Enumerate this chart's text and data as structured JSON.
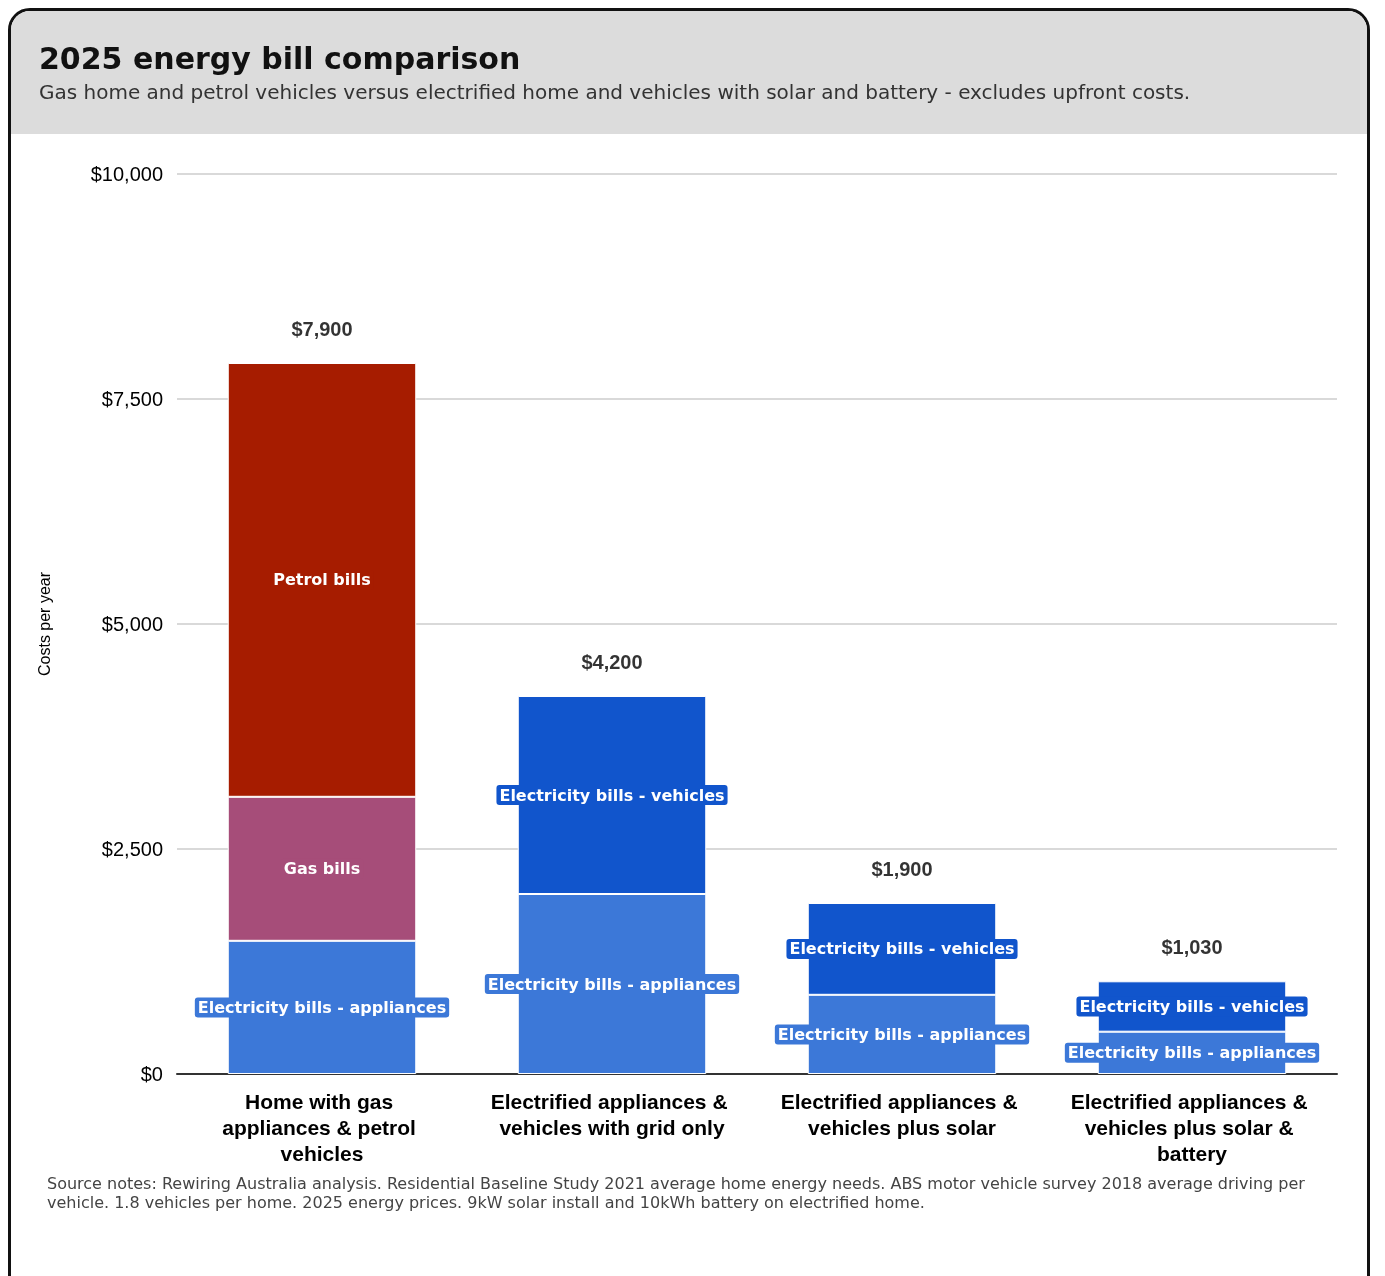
{
  "chart_data": {
    "type": "bar",
    "stacked": true,
    "title": "2025 energy bill comparison",
    "subtitle": "Gas home and petrol vehicles versus electrified home and vehicles with solar and battery - excludes upfront costs.",
    "ylabel": "Costs per year",
    "categories": [
      "Home with gas appliances & petrol vehicles",
      "Electrified appliances & vehicles with grid only",
      "Electrified appliances & vehicles plus solar",
      "Electrified appliances & vehicles plus solar & battery"
    ],
    "series": [
      {
        "name": "Electricity bills - appliances",
        "color": "#3c78d8",
        "values": [
          1480,
          2000,
          880,
          470
        ]
      },
      {
        "name": "Gas bills",
        "color": "#a64d79",
        "values": [
          1600,
          null,
          null,
          null
        ]
      },
      {
        "name": "Petrol bills",
        "color": "#a61c00",
        "values": [
          4820,
          null,
          null,
          null
        ]
      },
      {
        "name": "Electricity bills - vehicles",
        "color": "#1155cc",
        "values": [
          null,
          2200,
          1020,
          560
        ]
      }
    ],
    "totals": [
      "$7,900",
      "$4,200",
      "$1,900",
      "$1,030"
    ],
    "ylim": [
      0,
      10000
    ],
    "yticks": [
      {
        "value": 0,
        "label": "$0"
      },
      {
        "value": 2500,
        "label": "$2,500"
      },
      {
        "value": 5000,
        "label": "$5,000"
      },
      {
        "value": 7500,
        "label": "$7,500"
      },
      {
        "value": 10000,
        "label": "$10,000"
      }
    ],
    "grid": "y",
    "legend": false,
    "annotations": [
      "Source notes: Rewiring Australia analysis. Residential Baseline Study 2021 average home energy needs. ABS motor vehicle survey 2018 average driving per vehicle. 1.8 vehicles per home. 2025 energy prices. 9kW solar install and 10kWh battery on electrified home."
    ]
  }
}
